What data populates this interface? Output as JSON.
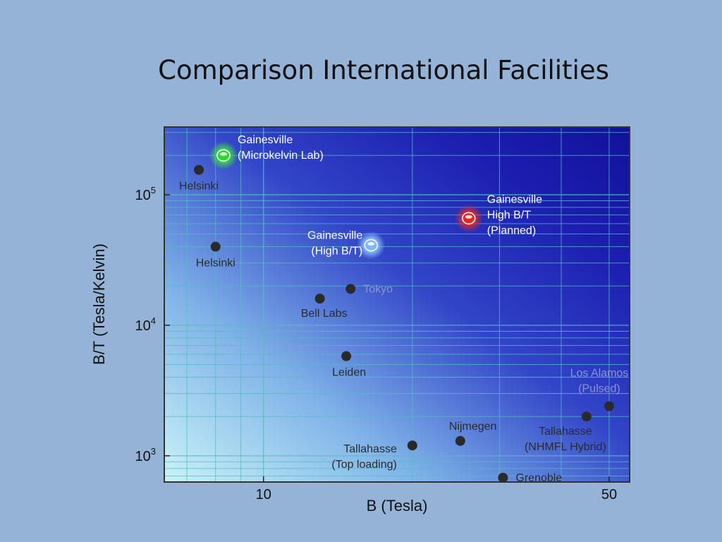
{
  "slide": {
    "title": "Comparison International Facilities"
  },
  "chart_data": {
    "type": "scatter",
    "xlabel": "B (Tesla)",
    "ylabel": "B/T (Tesla/Kelvin)",
    "x_scale": "log",
    "y_scale": "log",
    "xlim": [
      6.3,
      55
    ],
    "ylim": [
      630,
      330000
    ],
    "x_ticks": [
      {
        "value": 10,
        "label": "10"
      },
      {
        "value": 50,
        "label": "50"
      }
    ],
    "y_ticks": [
      {
        "value": 1000,
        "base": "10",
        "exp": "3"
      },
      {
        "value": 10000,
        "base": "10",
        "exp": "4"
      },
      {
        "value": 100000,
        "base": "10",
        "exp": "5"
      }
    ],
    "grid": true,
    "points": [
      {
        "x": 8.3,
        "y": 200000,
        "style": "green-glow",
        "lines": [
          "Gainesville",
          "(Microkelvin Lab)"
        ],
        "color": "#2bd92b"
      },
      {
        "x": 7.4,
        "y": 155000,
        "style": "dot",
        "lines": [
          "Helsinki"
        ]
      },
      {
        "x": 8.0,
        "y": 40000,
        "style": "dot",
        "lines": [
          "Helsinki"
        ]
      },
      {
        "x": 26,
        "y": 66000,
        "style": "red-glow",
        "lines": [
          "Gainesville",
          "High B/T",
          "(Planned)"
        ],
        "color": "#e8261c"
      },
      {
        "x": 16.5,
        "y": 41000,
        "style": "blue-glow",
        "lines": [
          "Gainesville",
          "(High B/T)"
        ],
        "color": "#7fb6ff"
      },
      {
        "x": 15,
        "y": 19000,
        "style": "dot",
        "lines": [
          "Tokyo"
        ]
      },
      {
        "x": 13,
        "y": 16000,
        "style": "dot",
        "lines": [
          "Bell Labs"
        ]
      },
      {
        "x": 14.7,
        "y": 5800,
        "style": "dot",
        "lines": [
          "Leiden"
        ]
      },
      {
        "x": 20,
        "y": 1200,
        "style": "dot",
        "lines": [
          "Tallahasse",
          "(Top loading)"
        ]
      },
      {
        "x": 25,
        "y": 1300,
        "style": "dot",
        "lines": [
          "Nijmegen"
        ]
      },
      {
        "x": 30.5,
        "y": 680,
        "style": "dot",
        "lines": [
          "Grenoble"
        ]
      },
      {
        "x": 45,
        "y": 2000,
        "style": "dot",
        "lines": [
          "Tallahasse",
          "(NHMFL Hybrid)"
        ]
      },
      {
        "x": 50,
        "y": 2400,
        "style": "dot",
        "lines": [
          "Los Alamos",
          "(Pulsed)"
        ]
      }
    ]
  }
}
